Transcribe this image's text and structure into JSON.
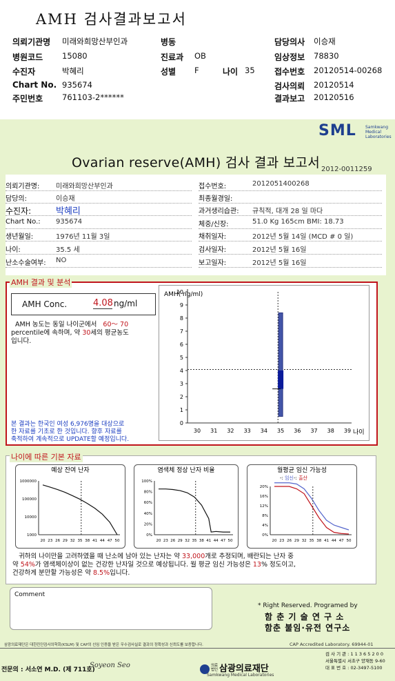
{
  "top": {
    "title": "AMH 검사결과보고서",
    "rows": [
      {
        "l1": "의뢰기관명",
        "v1": "미래와희망산부인과",
        "l2": "병동",
        "v2": "",
        "l3": "담당의사",
        "v3": "이승재"
      },
      {
        "l1": "병원코드",
        "v1": "15080",
        "l2": "진료과",
        "v2": "OB",
        "l3": "임상정보",
        "v3": "78830"
      },
      {
        "l1": "수진자",
        "v1": "박혜리",
        "l2": "성별",
        "v2": "F",
        "l2b": "나이",
        "v2b": "35",
        "l3": "접수번호",
        "v3": "20120514-00268"
      },
      {
        "l1": "Chart No.",
        "v1": "935674",
        "l2": "",
        "v2": "",
        "l3": "검사의뢰",
        "v3": "20120514"
      },
      {
        "l1": "주민번호",
        "v1": "761103-2******",
        "l2": "",
        "v2": "",
        "l3": "결과보고",
        "v3": "20120516"
      }
    ]
  },
  "logo": {
    "text": "SML",
    "sub1": "Samkwang",
    "sub2": "Medical",
    "sub3": "Laboratories"
  },
  "report": {
    "title": "Ovarian reserve(AMH) 검사 결과 보고서",
    "number": "2012-0011259",
    "left": [
      {
        "label": "의뢰기관명:",
        "value": "미래와희망산부인과"
      },
      {
        "label": "담당의:",
        "value": "이승재"
      },
      {
        "label": "수진자:",
        "value": "박혜리"
      },
      {
        "label": "Chart No.:",
        "value": "935674"
      },
      {
        "label": "생년월일:",
        "value": "1976년 11월 3일"
      },
      {
        "label": "나이:",
        "value": "35.5 세"
      },
      {
        "label": "난소수술여부:",
        "value": "NO"
      }
    ],
    "right": [
      {
        "label": "접수번호:",
        "value": "2012051400268"
      },
      {
        "label": "최종월경일:",
        "value": ""
      },
      {
        "label": "과거생리습관:",
        "value": "규칙적,  대개   28 일  마다"
      },
      {
        "label": "체중/신장:",
        "value": "51.0 Kg    165cm    BMI: 18.73"
      },
      {
        "label": "채취일자:",
        "value": "2012년 5월 14일    (MCD #  0  일)"
      },
      {
        "label": "검사일자:",
        "value": "2012년 5월 16일"
      },
      {
        "label": "보고일자:",
        "value": "2012년 5월 16일"
      }
    ]
  },
  "amh": {
    "section_title": "AMH 결과 및 분석",
    "conc_label": "AMH Conc.",
    "conc_value": "4.08",
    "conc_unit": "ng/ml",
    "desc1_a": "AMH 농도는 동일 나이군에서",
    "desc1_b": "60～ 70",
    "desc2_a": "percentile에 속하며,  약",
    "desc2_b": "30",
    "desc2_c": "세의 평균농도",
    "desc3": "입니다.",
    "note1": "본 결과는 한국인 여성 6,976명을 대상으로",
    "note2": "한 자료를 기초로 한 것입니다. 향후 자료를",
    "note3": "축적하여 계속적으로 UPDATE할 예정입니다."
  },
  "chart_data": [
    {
      "type": "bar",
      "ylabel": "AMH( ng/ml)",
      "xlabel": "나이",
      "x": [
        30,
        31,
        32,
        33,
        34,
        35,
        36,
        37,
        38,
        39
      ],
      "y_ticks": [
        0,
        1,
        2,
        3,
        4,
        5,
        6,
        7,
        8,
        9,
        10
      ],
      "ylim": [
        0,
        10
      ],
      "range_bar": {
        "age": 35,
        "low": 0.5,
        "high": 8.4
      },
      "iqr_box": {
        "age": 35,
        "low": 2.6,
        "high": 4.0
      },
      "marker": {
        "age": 35.5,
        "value": 4.08
      }
    },
    {
      "type": "line",
      "title": "예상 잔여 난자",
      "y_ticks": [
        "1000000",
        "100000",
        "10000",
        "1000"
      ],
      "x_ticks": [
        20,
        23,
        26,
        29,
        32,
        35,
        38,
        41,
        44,
        47,
        50
      ],
      "scale": "log",
      "marker_age": 35.5,
      "series": [
        {
          "x": [
            20,
            23,
            26,
            29,
            32,
            35,
            38,
            41,
            44,
            47,
            50
          ],
          "y": [
            600000,
            450000,
            330000,
            230000,
            150000,
            95000,
            55000,
            30000,
            14000,
            5000,
            1000
          ]
        }
      ]
    },
    {
      "type": "line",
      "title": "염색체 정상 난자 비율",
      "y_ticks": [
        "100%",
        "80%",
        "60%",
        "40%",
        "20%",
        "0%"
      ],
      "x_ticks": [
        20,
        23,
        26,
        29,
        32,
        35,
        38,
        41,
        44,
        47,
        50
      ],
      "marker_age": 35.5,
      "series": [
        {
          "x": [
            20,
            23,
            26,
            29,
            32,
            35,
            38,
            41,
            42,
            44,
            47,
            50
          ],
          "y": [
            85,
            85,
            84,
            82,
            78,
            70,
            55,
            30,
            5,
            6,
            5,
            5
          ]
        }
      ]
    },
    {
      "type": "line",
      "title": "월평균 임신 가능성",
      "y_ticks": [
        "20%",
        "16%",
        "12%",
        "8%",
        "4%",
        "0%"
      ],
      "x_ticks": [
        20,
        23,
        26,
        29,
        32,
        35,
        38,
        41,
        44,
        47,
        50
      ],
      "marker_age": 35.5,
      "series": [
        {
          "name": "임신",
          "color": "#5566cc",
          "x": [
            20,
            23,
            26,
            29,
            32,
            35,
            38,
            41,
            44,
            47,
            50
          ],
          "y": [
            21.5,
            21.5,
            21.5,
            21,
            19,
            15,
            10,
            6,
            4,
            3,
            2
          ]
        },
        {
          "name": "출산",
          "color": "#c0141b",
          "x": [
            20,
            23,
            26,
            29,
            32,
            35,
            38,
            41,
            44,
            47,
            50
          ],
          "y": [
            20,
            20,
            20,
            19,
            17,
            12,
            7,
            3,
            1,
            0.5,
            0.3
          ]
        }
      ]
    }
  ],
  "basic": {
    "section_title": "나이에 따른 기본 자료",
    "legend_prefix": "-: ",
    "legend_preg": "임신",
    "legend_mid": "-: ",
    "legend_birth": "출산",
    "summary1_a": "귀하의 나이만을 고려하였을 때 난소에 남아 있는 난자는 약",
    "summary1_b": "33,000",
    "summary1_c": "개로 추정되며, 배란되는 난자 중",
    "summary2_a": "약",
    "summary2_b": "54%",
    "summary2_c": "가 염색체이상이 없는 건강한 난자일 것으로 예상됩니다. 월 평균 임신 가능성은",
    "summary2_d": "13",
    "summary2_e": "% 정도이고,",
    "summary3_a": "건강하게 분만할 가능성은 약",
    "summary3_b": "8.5%",
    "summary3_c": "입니다."
  },
  "footer": {
    "comment_label": "Comment",
    "rights": "* Right Reserved. Programed by",
    "org1": "함 춘  기 술  연 구 소",
    "org2": "함춘 불임·유전 연구소",
    "cert_note": "삼광의료재단은 대한진단검사의학회(KSLM) 및 CAP의 신임 인증을 받은 우수검사실로 결과의 정확성과 신뢰도를 보증합니다.",
    "cap": "CAP  Accredited  Laboratory.   69944-01",
    "doctor": "전문의 : 서소연 M.D. (제 711호)",
    "sign": "Soyeon Seo",
    "foundation_small1": "의료",
    "foundation_small2": "법인",
    "foundation": "삼광의료재단",
    "foundation_en": "Samkwang Medical Laboratories",
    "phone1": "검 사 기 관 : 1 1 3 6 5 2 0 0",
    "addr": "서울특별시 서초구 양재동 9-60",
    "phone2": "대 표 번 호 :  02-3497-5100"
  }
}
